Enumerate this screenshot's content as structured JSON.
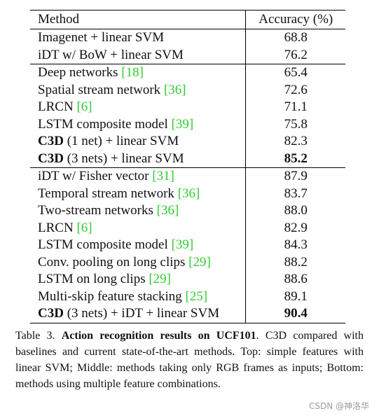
{
  "table": {
    "headers": {
      "method": "Method",
      "accuracy": "Accuracy (%)"
    },
    "rows": [
      {
        "method": "Imagenet + linear SVM",
        "ref": "",
        "suffix": "",
        "bold_prefix": "",
        "accuracy": "68.8",
        "bold_acc": false,
        "group_start": false
      },
      {
        "method": "iDT w/ BoW + linear SVM",
        "ref": "",
        "suffix": "",
        "bold_prefix": "",
        "accuracy": "76.2",
        "bold_acc": false,
        "group_start": false
      },
      {
        "method": "Deep networks ",
        "ref": "18",
        "suffix": "",
        "bold_prefix": "",
        "accuracy": "65.4",
        "bold_acc": false,
        "group_start": true
      },
      {
        "method": "Spatial stream network ",
        "ref": "36",
        "suffix": "",
        "bold_prefix": "",
        "accuracy": "72.6",
        "bold_acc": false,
        "group_start": false
      },
      {
        "method": "LRCN ",
        "ref": "6",
        "suffix": "",
        "bold_prefix": "",
        "accuracy": "71.1",
        "bold_acc": false,
        "group_start": false
      },
      {
        "method": "LSTM composite model ",
        "ref": "39",
        "suffix": "",
        "bold_prefix": "",
        "accuracy": "75.8",
        "bold_acc": false,
        "group_start": false
      },
      {
        "method": " (1 net) + linear SVM",
        "ref": "",
        "suffix": "",
        "bold_prefix": "C3D",
        "accuracy": "82.3",
        "bold_acc": false,
        "group_start": false
      },
      {
        "method": " (3 nets) + linear SVM",
        "ref": "",
        "suffix": "",
        "bold_prefix": "C3D",
        "accuracy": "85.2",
        "bold_acc": true,
        "group_start": false
      },
      {
        "method": "iDT w/ Fisher vector ",
        "ref": "31",
        "suffix": "",
        "bold_prefix": "",
        "accuracy": "87.9",
        "bold_acc": false,
        "group_start": true
      },
      {
        "method": "Temporal stream network ",
        "ref": "36",
        "suffix": "",
        "bold_prefix": "",
        "accuracy": "83.7",
        "bold_acc": false,
        "group_start": false
      },
      {
        "method": "Two-stream networks ",
        "ref": "36",
        "suffix": "",
        "bold_prefix": "",
        "accuracy": "88.0",
        "bold_acc": false,
        "group_start": false
      },
      {
        "method": "LRCN ",
        "ref": "6",
        "suffix": "",
        "bold_prefix": "",
        "accuracy": "82.9",
        "bold_acc": false,
        "group_start": false
      },
      {
        "method": "LSTM composite model ",
        "ref": "39",
        "suffix": "",
        "bold_prefix": "",
        "accuracy": "84.3",
        "bold_acc": false,
        "group_start": false
      },
      {
        "method": "Conv. pooling on long clips ",
        "ref": "29",
        "suffix": "",
        "bold_prefix": "",
        "accuracy": "88.2",
        "bold_acc": false,
        "group_start": false
      },
      {
        "method": "LSTM on long clips ",
        "ref": "29",
        "suffix": "",
        "bold_prefix": "",
        "accuracy": "88.6",
        "bold_acc": false,
        "group_start": false
      },
      {
        "method": "Multi-skip feature stacking ",
        "ref": "25",
        "suffix": "",
        "bold_prefix": "",
        "accuracy": "89.1",
        "bold_acc": false,
        "group_start": false
      },
      {
        "method": " (3 nets) + iDT + linear SVM",
        "ref": "",
        "suffix": "",
        "bold_prefix": "C3D",
        "accuracy": "90.4",
        "bold_acc": true,
        "group_start": false
      }
    ]
  },
  "caption": {
    "label": "Table 3. ",
    "bold": "Action recognition results on UCF101",
    "text": ". C3D compared with baselines and current state-of-the-art methods.  Top: simple features with linear SVM; Middle: methods taking only RGB frames as inputs; Bottom: methods using multiple feature combinations."
  },
  "watermark": "CSDN @神洛华",
  "colors": {
    "ref": "#2ecc2e",
    "text": "#111111"
  }
}
